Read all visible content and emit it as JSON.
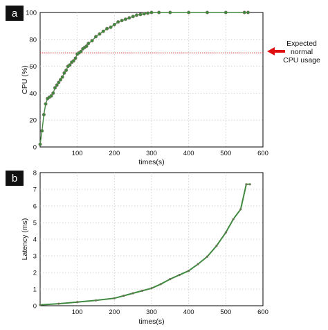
{
  "colors": {
    "line": "#3f8a3f",
    "marker": "#3a8c3a",
    "marker_edge": "#8a6b6b",
    "threshold": "#d42020",
    "arrow": "#e01010"
  },
  "chart_data": [
    {
      "type": "line",
      "panel_label": "a",
      "xlabel": "times(s)",
      "ylabel": "CPU (%)",
      "xlim": [
        0,
        600
      ],
      "ylim": [
        0,
        100
      ],
      "xticks": [
        "100",
        "200",
        "300",
        "400",
        "500",
        "600"
      ],
      "yticks": [
        "0",
        "20",
        "40",
        "60",
        "80",
        "100"
      ],
      "grid": true,
      "threshold": {
        "y": 70,
        "style": "dotted"
      },
      "annotation": {
        "lines": [
          "Expected",
          "normal",
          "CPU usage"
        ],
        "position": "right"
      },
      "series": [
        {
          "x": [
            0,
            5,
            10,
            15,
            20,
            25,
            30,
            35,
            40,
            45,
            50,
            55,
            60,
            65,
            70,
            75,
            80,
            85,
            90,
            95,
            100,
            105,
            110,
            115,
            120,
            125,
            130,
            140,
            150,
            160,
            170,
            180,
            190,
            200,
            210,
            220,
            230,
            240,
            250,
            260,
            270,
            280,
            290,
            300,
            320,
            350,
            400,
            450,
            500,
            550,
            560
          ],
          "y": [
            2,
            12,
            24,
            32,
            36,
            37,
            38,
            40,
            44,
            46,
            48,
            50,
            52,
            55,
            57,
            60,
            61,
            63,
            64,
            66,
            69,
            70,
            71,
            73,
            74,
            75,
            77,
            79,
            82,
            84,
            86,
            88,
            89,
            91,
            93,
            94,
            95,
            96,
            97,
            98,
            98.5,
            99,
            99.5,
            100,
            100,
            100,
            100,
            100,
            100,
            100,
            100
          ]
        }
      ]
    },
    {
      "type": "line",
      "panel_label": "b",
      "xlabel": "times(s)",
      "ylabel": "Latency (ms)",
      "xlim": [
        0,
        600
      ],
      "ylim": [
        0,
        8
      ],
      "xticks": [
        "100",
        "200",
        "300",
        "400",
        "500",
        "600"
      ],
      "yticks": [
        "0",
        "1",
        "2",
        "3",
        "4",
        "5",
        "6",
        "7",
        "8"
      ],
      "grid": true,
      "series": [
        {
          "x": [
            0,
            50,
            100,
            150,
            200,
            225,
            250,
            275,
            300,
            325,
            350,
            375,
            400,
            425,
            450,
            475,
            500,
            520,
            540,
            555,
            565
          ],
          "y": [
            0.05,
            0.12,
            0.22,
            0.32,
            0.45,
            0.6,
            0.75,
            0.9,
            1.05,
            1.3,
            1.6,
            1.85,
            2.1,
            2.5,
            2.95,
            3.6,
            4.4,
            5.2,
            5.8,
            7.3,
            7.3
          ]
        }
      ]
    }
  ]
}
